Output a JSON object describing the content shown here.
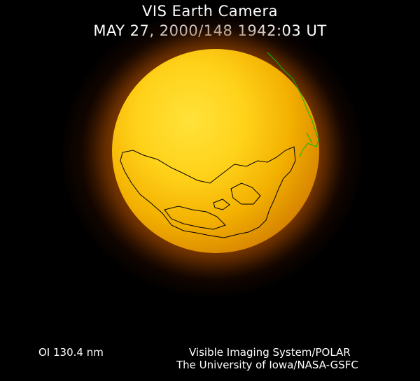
{
  "header": {
    "title": "VIS Earth Camera",
    "timestamp": "MAY 27, 2000/148 1942:03 UT"
  },
  "footer": {
    "wavelength": "OI  130.4 nm",
    "instrument": "Visible Imaging System/POLAR",
    "institution": "The University of Iowa/NASA-GSFC"
  },
  "colors": {
    "background": "#000000",
    "disk_core": "#ffd21a",
    "disk_edge": "#a85800",
    "coastline": "#000000",
    "terminator_overlay": "#00c000"
  }
}
